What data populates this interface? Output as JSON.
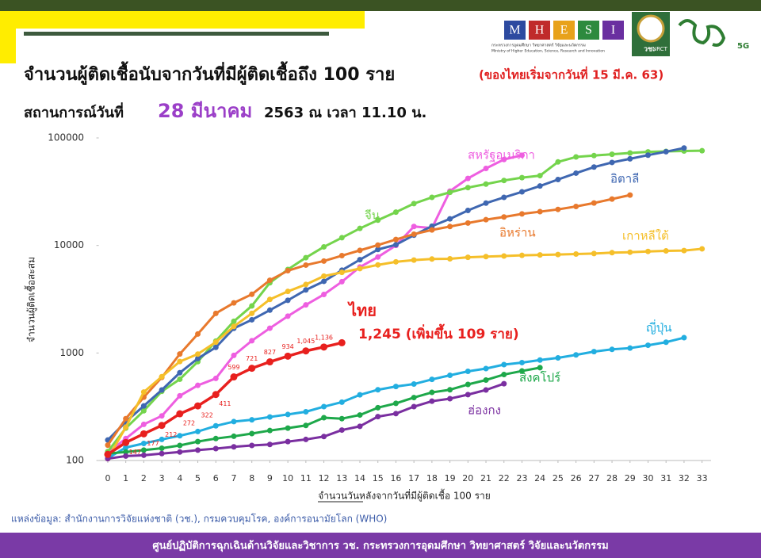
{
  "header": {
    "logo_letters": [
      "M",
      "H",
      "E",
      "S",
      "I"
    ],
    "ministry_th": "กระทรวงการอุดมศึกษา วิทยาศาสตร์ วิจัยและนวัตกรรม",
    "ministry_en": "Ministry of Higher Education, Science, Research and Innovation",
    "nrct_th": "วช.",
    "nrct_en": "NRCT",
    "brand": "5G"
  },
  "chart_data": {
    "type": "line",
    "title": "จำนวนผู้ติดเชื้อนับจากวันที่มีผู้ติดเชื้อถึง 100 ราย",
    "title_note": "(ของไทยเริ่มจากวันที่ 15 มี.ค. 63)",
    "subtitle": [
      "สถานการณ์วันที่",
      "28 มีนาคม",
      "2563 ณ เวลา 11.10 น."
    ],
    "y_label": "จำนวนผู้ติดเชื้อสะสม",
    "x_label": "จำนวนวันหลังจากวันที่มีผู้ติดเชื้อ 100 ราย",
    "log_scale": true,
    "xlim": [
      -0.5,
      33.5
    ],
    "ylim": [
      100,
      100000
    ],
    "xticks": [
      0,
      1,
      2,
      3,
      4,
      5,
      6,
      7,
      8,
      9,
      10,
      11,
      12,
      13,
      14,
      15,
      16,
      17,
      18,
      19,
      20,
      21,
      22,
      23,
      24,
      25,
      26,
      27,
      28,
      29,
      30,
      31,
      32,
      33
    ],
    "yticks": [
      100,
      1000,
      10000,
      100000
    ],
    "annotations": [
      "1,245 (เพิ่มขึ้น 109 ราย)"
    ],
    "series": [
      {
        "name": "สหรัฐอเมริกา",
        "color": "#ee5ee0",
        "x": [
          0,
          1,
          2,
          3,
          4,
          5,
          6,
          7,
          8,
          9,
          10,
          11,
          12,
          13,
          14,
          15,
          16,
          17,
          18,
          19,
          20,
          21,
          22,
          23
        ],
        "values": [
          118,
          160,
          217,
          260,
          400,
          500,
          580,
          950,
          1300,
          1700,
          2200,
          2800,
          3500,
          4600,
          6300,
          7800,
          10000,
          15000,
          14500,
          32000,
          42000,
          52000,
          63000,
          69000
        ]
      },
      {
        "name": "จีน",
        "color": "#74d44c",
        "x": [
          0,
          1,
          2,
          3,
          4,
          5,
          6,
          7,
          8,
          9,
          10,
          11,
          12,
          13,
          14,
          15,
          16,
          17,
          18,
          19,
          20,
          21,
          22,
          23,
          24,
          25,
          26,
          27,
          28,
          29,
          30,
          31,
          32,
          33
        ],
        "values": [
          121,
          200,
          290,
          440,
          570,
          830,
          1290,
          1970,
          2740,
          4500,
          5970,
          7700,
          9700,
          11800,
          14400,
          17200,
          20400,
          24500,
          28000,
          31200,
          34500,
          37200,
          40200,
          42700,
          44600,
          59800,
          66500,
          68500,
          70500,
          72400,
          74200,
          75000,
          75500,
          76000
        ]
      },
      {
        "name": "อิตาลี",
        "color": "#3f67b1",
        "x": [
          0,
          1,
          2,
          3,
          4,
          5,
          6,
          7,
          8,
          9,
          10,
          11,
          12,
          13,
          14,
          15,
          16,
          17,
          18,
          19,
          20,
          21,
          22,
          23,
          24,
          25,
          26,
          27,
          28,
          29,
          30,
          31,
          32
        ],
        "values": [
          155,
          229,
          322,
          453,
          655,
          888,
          1128,
          1694,
          2036,
          2502,
          3089,
          3858,
          4636,
          5883,
          7375,
          9172,
          10149,
          12462,
          15113,
          17660,
          21157,
          24747,
          27980,
          31506,
          35713,
          41035,
          47021,
          53578,
          59138,
          63927,
          69176,
          74386,
          80589
        ]
      },
      {
        "name": "อิหร่าน",
        "color": "#e8792d",
        "x": [
          0,
          1,
          2,
          3,
          4,
          5,
          6,
          7,
          8,
          9,
          10,
          11,
          12,
          13,
          14,
          15,
          16,
          17,
          18,
          19,
          20,
          21,
          22,
          23,
          24,
          25,
          26,
          27,
          28,
          29
        ],
        "values": [
          139,
          245,
          388,
          593,
          978,
          1501,
          2336,
          2922,
          3513,
          4747,
          5823,
          6566,
          7161,
          8042,
          9000,
          10075,
          11364,
          12729,
          13938,
          14991,
          16169,
          17361,
          18407,
          19644,
          20610,
          21638,
          23049,
          24811,
          27017,
          29406
        ]
      },
      {
        "name": "เกาหลีใต้",
        "color": "#f5bf2a",
        "x": [
          0,
          1,
          2,
          3,
          4,
          5,
          6,
          7,
          8,
          9,
          10,
          11,
          12,
          13,
          14,
          15,
          16,
          17,
          18,
          19,
          20,
          21,
          22,
          23,
          24,
          25,
          26,
          27,
          28,
          29,
          30,
          31,
          32,
          33
        ],
        "values": [
          104,
          204,
          433,
          602,
          833,
          977,
          1261,
          1766,
          2337,
          3150,
          3736,
          4335,
          5186,
          5621,
          6088,
          6593,
          7041,
          7314,
          7478,
          7513,
          7755,
          7869,
          7979,
          8086,
          8162,
          8236,
          8320,
          8413,
          8565,
          8652,
          8799,
          8897,
          8961,
          9300
        ]
      },
      {
        "name": "ญี่ปุ่น",
        "color": "#22aee0",
        "x": [
          0,
          1,
          2,
          3,
          4,
          5,
          6,
          7,
          8,
          9,
          10,
          11,
          12,
          13,
          14,
          15,
          16,
          17,
          18,
          19,
          20,
          21,
          22,
          23,
          24,
          25,
          26,
          27,
          28,
          29,
          30,
          31,
          32
        ],
        "values": [
          105,
          132,
          144,
          157,
          170,
          186,
          210,
          230,
          239,
          254,
          268,
          284,
          317,
          349,
          408,
          455,
          488,
          514,
          568,
          620,
          675,
          716,
          780,
          814,
          860,
          900,
          960,
          1030,
          1080,
          1110,
          1180,
          1260,
          1387
        ]
      },
      {
        "name": "สิงคโปร์",
        "color": "#1ea84a",
        "x": [
          0,
          1,
          2,
          3,
          4,
          5,
          6,
          7,
          8,
          9,
          10,
          11,
          12,
          13,
          14,
          15,
          16,
          17,
          18,
          19,
          20,
          21,
          22,
          23,
          24
        ],
        "values": [
          116,
          120,
          125,
          130,
          138,
          150,
          160,
          168,
          178,
          190,
          200,
          212,
          250,
          245,
          265,
          310,
          340,
          385,
          430,
          455,
          510,
          560,
          630,
          680,
          730
        ]
      },
      {
        "name": "ฮ่องกง",
        "color": "#7a2fa0",
        "x": [
          0,
          1,
          2,
          3,
          4,
          5,
          6,
          7,
          8,
          9,
          10,
          11,
          12,
          13,
          14,
          15,
          16,
          17,
          18,
          19,
          20,
          21,
          22
        ],
        "values": [
          104,
          110,
          112,
          116,
          120,
          125,
          129,
          134,
          138,
          141,
          150,
          157,
          167,
          192,
          208,
          256,
          273,
          317,
          356,
          376,
          410,
          453,
          518
        ]
      },
      {
        "name": "ไทย",
        "color": "#e8201e",
        "x": [
          0,
          1,
          2,
          3,
          4,
          5,
          6,
          7,
          8,
          9,
          10,
          11,
          12,
          13
        ],
        "values": [
          114,
          147,
          177,
          212,
          272,
          322,
          411,
          599,
          721,
          827,
          934,
          1045,
          1136,
          1245
        ],
        "value_labels": [
          null,
          "147",
          "177",
          "212",
          "272",
          "322",
          "411",
          "599",
          "721",
          "827",
          "934",
          "1,045",
          "1,136",
          null
        ]
      }
    ]
  },
  "source": "แหล่งข้อมูล: สำนักงานการวิจัยแห่งชาติ (วช.), กรมควบคุมโรค, องค์การอนามัยโลก (WHO)",
  "footer": "ศูนย์ปฏิบัติการฉุกเฉินด้านวิจัยและวิชาการ   วช.   กระทรวงการอุดมศึกษา วิทยาศาสตร์ วิจัยและนวัตกรรม"
}
